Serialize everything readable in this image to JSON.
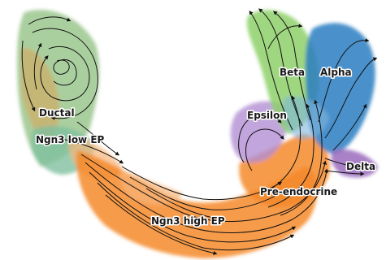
{
  "clusters": [
    {
      "id": "ductal",
      "label": "Ductal",
      "color": "#8dbf7f"
    },
    {
      "id": "ngn3low",
      "label": "Ngn3 low EP",
      "color": "#8dbf7f"
    },
    {
      "id": "ngn3high",
      "label": "Ngn3 high EP",
      "color": "#f4892a"
    },
    {
      "id": "preendo",
      "label": "Pre-endocrine",
      "color": "#f4892a"
    },
    {
      "id": "beta",
      "label": "Beta",
      "color": "#8ed06a"
    },
    {
      "id": "alpha",
      "label": "Alpha",
      "color": "#2a7ec2"
    },
    {
      "id": "epsilon",
      "label": "Epsilon",
      "color": "#b28ed3"
    },
    {
      "id": "delta",
      "label": "Delta",
      "color": "#9a6bbd"
    }
  ],
  "colors": {
    "streamline": "#111111",
    "ductal_teal": "#7fbf9f",
    "ductal_green": "#79b863",
    "orange": "#f4892a",
    "light_orange": "#f7b57a",
    "beta_green": "#8ed06a",
    "alpha_blue": "#2a7ec2",
    "light_blue": "#7fb5de",
    "epsilon_purple": "#b28ed3",
    "delta_purple": "#9a6bbd"
  }
}
